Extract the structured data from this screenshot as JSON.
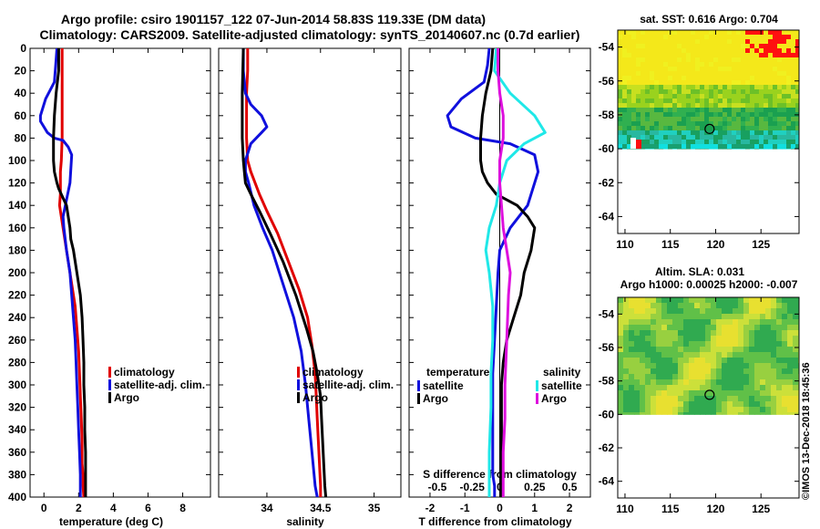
{
  "header": {
    "title_line1": "Argo profile: csiro 1901157_122 07-Jun-2014 58.83S 119.33E (DM data)",
    "title_line2": "Climatology: CARS2009. Satellite-adjusted climatology: synTS_20140607.nc (0.7d earlier)"
  },
  "footer": {
    "credit": "©IMOS 13-Dec-2018 18:45:36"
  },
  "colors": {
    "climatology": "#e00000",
    "satellite": "#1010dd",
    "argo": "#000000",
    "sat_salinity": "#20e8e8",
    "clim_salinity": "#dd10dd"
  },
  "chart_data": [
    {
      "type": "line",
      "name": "temperature",
      "xlabel": "temperature (deg C)",
      "ylabel": "",
      "xlim": [
        -0.8,
        9.6
      ],
      "ylim": [
        400,
        0
      ],
      "xticks": [
        "0",
        "2",
        "4",
        "6",
        "8"
      ],
      "xtick_values": [
        0,
        2,
        4,
        6,
        8
      ],
      "yticks": [
        "0",
        "20",
        "40",
        "60",
        "80",
        "100",
        "120",
        "140",
        "160",
        "180",
        "200",
        "220",
        "240",
        "260",
        "280",
        "300",
        "320",
        "340",
        "360",
        "380",
        "400"
      ],
      "legend": [
        "climatology",
        "satellite-adj. clim.",
        "Argo"
      ],
      "series": [
        {
          "name": "climatology",
          "color": "#e00000",
          "x": [
            1.05,
            1.05,
            1.05,
            1.05,
            1.05,
            1.0,
            0.95,
            0.95,
            0.95,
            0.9,
            1.0,
            1.2,
            1.4,
            1.6,
            1.8,
            1.9,
            2.0,
            2.05,
            2.1,
            2.15,
            2.2,
            2.2,
            2.25,
            2.25,
            2.3
          ],
          "y": [
            0,
            20,
            40,
            60,
            80,
            100,
            110,
            120,
            130,
            140,
            150,
            170,
            190,
            210,
            230,
            250,
            270,
            290,
            310,
            330,
            350,
            370,
            380,
            390,
            400
          ]
        },
        {
          "name": "satellite-adj. clim.",
          "color": "#1010dd",
          "x": [
            0.75,
            0.7,
            0.6,
            0.1,
            -0.2,
            -0.2,
            0.2,
            0.6,
            1.1,
            1.4,
            1.6,
            1.5,
            1.1,
            1.15,
            1.3,
            1.5,
            1.6,
            1.7,
            1.8,
            1.85,
            1.9,
            1.95,
            2.0,
            2.05,
            2.1,
            2.1
          ],
          "y": [
            0,
            10,
            30,
            45,
            60,
            65,
            75,
            80,
            82,
            88,
            95,
            120,
            150,
            160,
            180,
            200,
            220,
            240,
            260,
            280,
            300,
            320,
            340,
            360,
            380,
            400
          ]
        },
        {
          "name": "Argo",
          "color": "#000000",
          "x": [
            0.85,
            0.85,
            0.7,
            0.6,
            0.55,
            0.55,
            0.6,
            0.75,
            0.85,
            1.3,
            1.4,
            1.5,
            1.55,
            1.7,
            1.9,
            2.1,
            2.2,
            2.25,
            2.3,
            2.3,
            2.35,
            2.35,
            2.4,
            2.4,
            2.4
          ],
          "y": [
            0,
            20,
            40,
            60,
            80,
            100,
            110,
            120,
            125,
            140,
            150,
            160,
            170,
            180,
            200,
            220,
            240,
            260,
            280,
            300,
            320,
            340,
            360,
            380,
            400
          ]
        }
      ]
    },
    {
      "type": "line",
      "name": "salinity",
      "xlabel": "salinity",
      "xlim": [
        33.55,
        35.25
      ],
      "ylim": [
        400,
        0
      ],
      "xticks": [
        "34",
        "34.5",
        "35"
      ],
      "xtick_values": [
        34,
        34.5,
        35
      ],
      "legend": [
        "climatology",
        "satellite-adj. clim.",
        "Argo"
      ],
      "series": [
        {
          "name": "climatology",
          "color": "#e00000",
          "x": [
            33.82,
            33.82,
            33.81,
            33.81,
            33.81,
            33.82,
            33.85,
            33.93,
            34.0,
            34.1,
            34.2,
            34.3,
            34.38,
            34.42,
            34.45,
            34.46,
            34.47,
            34.48,
            34.49,
            34.5,
            34.5
          ],
          "y": [
            0,
            20,
            40,
            60,
            80,
            100,
            110,
            130,
            145,
            165,
            190,
            215,
            240,
            265,
            290,
            310,
            330,
            350,
            370,
            390,
            400
          ]
        },
        {
          "name": "satellite-adj. clim.",
          "color": "#1010dd",
          "x": [
            33.78,
            33.78,
            33.8,
            33.85,
            33.95,
            34.0,
            33.95,
            33.85,
            33.8,
            33.8,
            33.83,
            33.88,
            33.96,
            34.05,
            34.15,
            34.25,
            34.32,
            34.36,
            34.39,
            34.42,
            34.45,
            34.47
          ],
          "y": [
            0,
            20,
            40,
            50,
            60,
            70,
            75,
            85,
            100,
            110,
            120,
            140,
            160,
            180,
            210,
            240,
            270,
            300,
            330,
            360,
            390,
            400
          ]
        },
        {
          "name": "Argo",
          "color": "#000000",
          "x": [
            33.78,
            33.77,
            33.77,
            33.78,
            33.79,
            33.8,
            33.85,
            33.93,
            34.03,
            34.15,
            34.27,
            34.37,
            34.43,
            34.47,
            34.5,
            34.51,
            34.52,
            34.53,
            34.54,
            34.55
          ],
          "y": [
            0,
            40,
            80,
            100,
            110,
            120,
            130,
            145,
            165,
            190,
            220,
            250,
            270,
            290,
            310,
            330,
            350,
            370,
            390,
            400
          ]
        }
      ]
    },
    {
      "type": "line",
      "name": "difference from climatology",
      "xlabel": "T difference from climatology",
      "xlabel2": "S difference from climatology",
      "xlim": [
        -2.6,
        2.6
      ],
      "ylim": [
        400,
        0
      ],
      "xticks": [
        "-2",
        "-1",
        "0",
        "1",
        "2"
      ],
      "xtick_values": [
        -2,
        -1,
        0,
        1,
        2
      ],
      "sticks": [
        "-0.5",
        "-0.25",
        "0",
        "0.25",
        "0.5"
      ],
      "stick_values": [
        -2,
        -1,
        0,
        1,
        2
      ],
      "legend_temperature_title": "temperature",
      "legend_salinity_title": "salinity",
      "legend_temperature": [
        "satellite",
        "Argo"
      ],
      "legend_salinity": [
        "satellite",
        "Argo"
      ],
      "series": [
        {
          "name": "temperature satellite",
          "color": "#1010dd",
          "x": [
            -0.3,
            -0.35,
            -0.45,
            -1.1,
            -1.5,
            -1.4,
            -0.7,
            0.3,
            1.0,
            1.1,
            0.8,
            0.3,
            0.0,
            -0.05,
            -0.1,
            -0.15,
            -0.2,
            -0.2,
            -0.2,
            -0.2,
            -0.15,
            -0.15
          ],
          "y": [
            0,
            15,
            30,
            45,
            60,
            70,
            80,
            85,
            95,
            110,
            140,
            160,
            180,
            200,
            230,
            260,
            290,
            320,
            350,
            380,
            390,
            400
          ]
        },
        {
          "name": "temperature Argo",
          "color": "#000000",
          "x": [
            -0.2,
            -0.25,
            -0.4,
            -0.5,
            -0.55,
            -0.55,
            -0.5,
            -0.35,
            -0.1,
            0.5,
            0.8,
            1.0,
            0.9,
            0.7,
            0.6,
            0.4,
            0.2,
            0.1,
            0.05,
            0.05,
            0.05
          ],
          "y": [
            0,
            20,
            40,
            60,
            80,
            100,
            110,
            120,
            130,
            140,
            150,
            160,
            180,
            200,
            220,
            240,
            260,
            280,
            300,
            350,
            400
          ]
        },
        {
          "name": "salinity satellite",
          "color": "#20e8e8",
          "x": [
            -0.1,
            -0.15,
            0.3,
            1.0,
            1.3,
            0.7,
            0.2,
            0.0,
            -0.1,
            -0.3,
            -0.4,
            -0.3,
            -0.2,
            -0.2,
            -0.25,
            -0.25,
            -0.3,
            -0.3
          ],
          "y": [
            0,
            20,
            40,
            60,
            75,
            85,
            100,
            120,
            140,
            160,
            180,
            200,
            230,
            260,
            290,
            320,
            360,
            400
          ]
        },
        {
          "name": "salinity Argo",
          "color": "#dd10dd",
          "x": [
            -0.05,
            -0.05,
            0.0,
            0.1,
            0.1,
            0.0,
            0.0,
            0.05,
            0.1,
            0.2,
            0.3,
            0.25,
            0.2,
            0.15,
            0.15,
            0.1,
            0.1,
            0.1
          ],
          "y": [
            0,
            20,
            40,
            60,
            80,
            100,
            120,
            140,
            160,
            180,
            200,
            220,
            260,
            300,
            330,
            360,
            380,
            400
          ]
        }
      ]
    },
    {
      "type": "heatmap",
      "name": "sst map",
      "title": "sat. SST: 0.616 Argo: 0.704",
      "lon_ticks": [
        "110",
        "115",
        "120",
        "125"
      ],
      "lon_values": [
        110,
        115,
        120,
        125
      ],
      "lat_ticks": [
        "-54",
        "-56",
        "-58",
        "-60",
        "-62",
        "-64"
      ],
      "lat_values": [
        -54,
        -56,
        -58,
        -60,
        -62,
        -64
      ],
      "lon_range": [
        109.2,
        129.2
      ],
      "lat_range": [
        -53,
        -65
      ],
      "data_lat_limit": -60,
      "argo_lon": 119.33,
      "argo_lat": -58.83
    },
    {
      "type": "heatmap",
      "name": "sla map",
      "title": "Altim. SLA: 0.031",
      "subtitle": "Argo h1000: 0.00025 h2000: -0.007",
      "lon_ticks": [
        "110",
        "115",
        "120",
        "125"
      ],
      "lon_values": [
        110,
        115,
        120,
        125
      ],
      "lat_ticks": [
        "-54",
        "-56",
        "-58",
        "-60",
        "-62",
        "-64"
      ],
      "lat_values": [
        -54,
        -56,
        -58,
        -60,
        -62,
        -64
      ],
      "lon_range": [
        109.2,
        129.2
      ],
      "lat_range": [
        -53,
        -65
      ],
      "data_lat_limit": -60,
      "argo_lon": 119.33,
      "argo_lat": -58.83
    }
  ]
}
